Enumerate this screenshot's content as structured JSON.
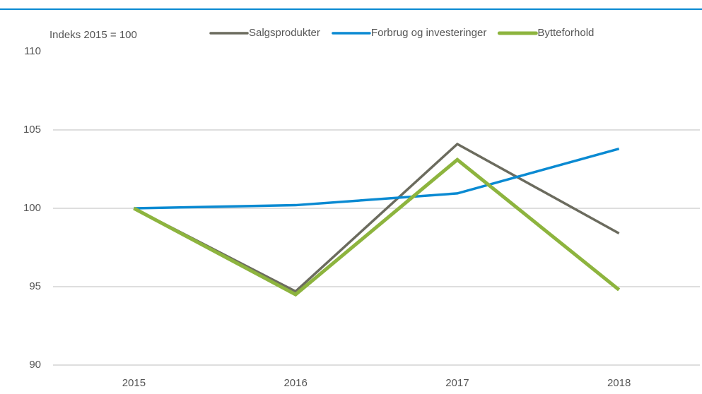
{
  "chart_data": {
    "type": "line",
    "annotation": "Indeks 2015 = 100",
    "categories": [
      "2015",
      "2016",
      "2017",
      "2018"
    ],
    "series": [
      {
        "name": "Salgsprodukter",
        "color": "#6b6b5e",
        "width": 3.5,
        "values": [
          100,
          94.7,
          104.1,
          98.4
        ]
      },
      {
        "name": "Forbrug og investeringer",
        "color": "#0a8ad2",
        "width": 3.5,
        "values": [
          100,
          100.2,
          100.95,
          103.8
        ]
      },
      {
        "name": "Bytteforhold",
        "color": "#8db43e",
        "width": 5,
        "values": [
          100,
          94.5,
          103.1,
          94.8
        ]
      }
    ],
    "ylim": [
      90,
      110
    ],
    "yticks": [
      90,
      95,
      100,
      105,
      110
    ],
    "grid": true,
    "legend": "top"
  }
}
